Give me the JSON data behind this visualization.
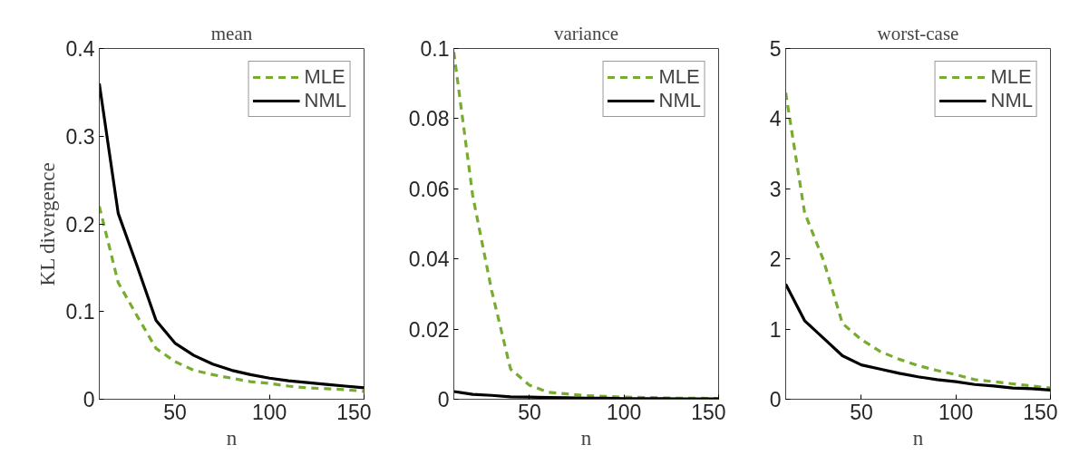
{
  "chart_data": [
    {
      "type": "line",
      "title": "mean",
      "xlabel": "n",
      "ylabel": "KL divergence",
      "x": [
        10,
        20,
        30,
        40,
        50,
        60,
        70,
        80,
        90,
        100,
        110,
        120,
        130,
        140,
        150
      ],
      "xlim": [
        10,
        150
      ],
      "xticks": [
        50,
        100,
        150
      ],
      "ylim": [
        0,
        0.4
      ],
      "yticks": [
        0,
        0.1,
        0.2,
        0.3,
        0.4
      ],
      "legend": "top right",
      "grid": false,
      "series": [
        {
          "name": "MLE",
          "color": "#77ac30",
          "line_style": "dashed",
          "values": [
            0.22,
            0.133,
            0.095,
            0.058,
            0.043,
            0.033,
            0.028,
            0.024,
            0.02,
            0.018,
            0.015,
            0.013,
            0.012,
            0.011,
            0.009
          ]
        },
        {
          "name": "NML",
          "color": "#000000",
          "line_style": "solid",
          "values": [
            0.36,
            0.212,
            0.152,
            0.09,
            0.064,
            0.05,
            0.04,
            0.033,
            0.028,
            0.024,
            0.021,
            0.019,
            0.017,
            0.015,
            0.013
          ]
        }
      ]
    },
    {
      "type": "line",
      "title": "variance",
      "xlabel": "n",
      "x": [
        10,
        20,
        30,
        40,
        50,
        60,
        70,
        80,
        90,
        100,
        110,
        120,
        130,
        140,
        150
      ],
      "xlim": [
        10,
        150
      ],
      "xticks": [
        50,
        100,
        150
      ],
      "ylim": [
        0,
        0.1
      ],
      "yticks": [
        0,
        0.02,
        0.04,
        0.06,
        0.08,
        0.1
      ],
      "legend": "top right",
      "grid": false,
      "series": [
        {
          "name": "MLE",
          "color": "#77ac30",
          "line_style": "dashed",
          "values": [
            0.099,
            0.058,
            0.031,
            0.0086,
            0.004,
            0.002,
            0.0015,
            0.001,
            0.0008,
            0.0006,
            0.0005,
            0.0004,
            0.0003,
            0.0003,
            0.0002
          ]
        },
        {
          "name": "NML",
          "color": "#000000",
          "line_style": "solid",
          "values": [
            0.0022,
            0.0014,
            0.0011,
            0.0007,
            0.0006,
            0.0005,
            0.0004,
            0.0003,
            0.0003,
            0.0002,
            0.0002,
            0.0002,
            0.0001,
            0.0001,
            0.0001
          ]
        }
      ]
    },
    {
      "type": "line",
      "title": "worst-case",
      "xlabel": "n",
      "x": [
        10,
        20,
        30,
        40,
        50,
        60,
        70,
        80,
        90,
        100,
        110,
        120,
        130,
        140,
        150
      ],
      "xlim": [
        10,
        150
      ],
      "xticks": [
        50,
        100,
        150
      ],
      "ylim": [
        0,
        5
      ],
      "yticks": [
        0,
        1,
        2,
        3,
        4,
        5
      ],
      "legend": "top right",
      "grid": false,
      "series": [
        {
          "name": "MLE",
          "color": "#77ac30",
          "line_style": "dashed",
          "values": [
            4.37,
            2.66,
            1.98,
            1.08,
            0.85,
            0.68,
            0.57,
            0.48,
            0.41,
            0.35,
            0.28,
            0.25,
            0.22,
            0.19,
            0.16
          ]
        },
        {
          "name": "NML",
          "color": "#000000",
          "line_style": "solid",
          "values": [
            1.64,
            1.12,
            0.87,
            0.62,
            0.49,
            0.43,
            0.37,
            0.32,
            0.28,
            0.25,
            0.21,
            0.19,
            0.16,
            0.15,
            0.13
          ]
        }
      ]
    }
  ]
}
